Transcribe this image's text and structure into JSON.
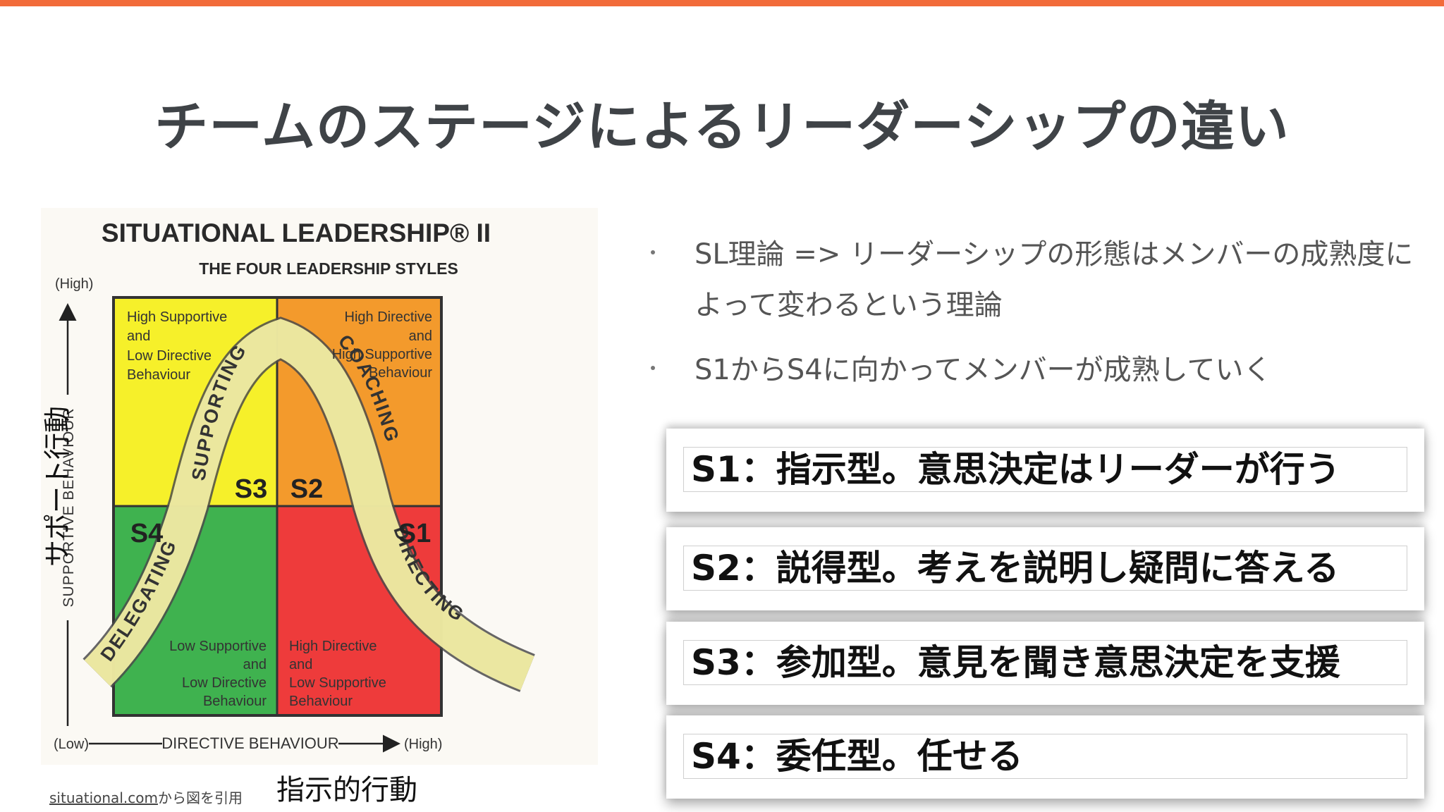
{
  "slide": {
    "title": "チームのステージによるリーダーシップの違い",
    "accent_color": "#f26b3a"
  },
  "diagram": {
    "title": "SITUATIONAL LEADERSHIP® II",
    "subtitle": "THE FOUR LEADERSHIP STYLES",
    "y_high": "(High)",
    "y_axis_label": "SUPPORTIVE  BEHAVIOUR",
    "x_low": "(Low)",
    "x_axis_label": "DIRECTIVE  BEHAVIOUR",
    "x_high": "(High)",
    "quadrants": [
      {
        "id": "S3",
        "label": "S3",
        "color": "#f6f02a",
        "desc": [
          "High Supportive",
          "and",
          "Low Directive",
          "Behaviour"
        ]
      },
      {
        "id": "S2",
        "label": "S2",
        "color": "#f39a2c",
        "desc": [
          "High Directive",
          "and",
          "High Supportive",
          "Behaviour"
        ]
      },
      {
        "id": "S4",
        "label": "S4",
        "color": "#3fb24f",
        "desc": [
          "Low Supportive",
          "and",
          "Low Directive",
          "Behaviour"
        ]
      },
      {
        "id": "S1",
        "label": "S1",
        "color": "#ee3b3b",
        "desc": [
          "High Directive",
          "and",
          "Low Supportive",
          "Behaviour"
        ]
      }
    ],
    "curve_labels": [
      "SUPPORTING",
      "COACHING",
      "DELEGATING",
      "DIRECTING"
    ]
  },
  "captions": {
    "vertical": "サポート行動",
    "horizontal": "指示的行動",
    "source_link": "situational.com",
    "source_suffix": "から図を引用"
  },
  "bullets": [
    {
      "text": "SL理論 => リーダーシップの形態はメンバーの成熟度によって変わるという理論"
    },
    {
      "text": "S1からS4に向かってメンバーが成熟していく"
    }
  ],
  "styles": [
    {
      "text": "S1：指示型。意思決定はリーダーが行う"
    },
    {
      "text": "S2：説得型。考えを説明し疑問に答える"
    },
    {
      "text": "S3：参加型。意見を聞き意思決定を支援"
    },
    {
      "text": "S4：委任型。任せる"
    }
  ]
}
